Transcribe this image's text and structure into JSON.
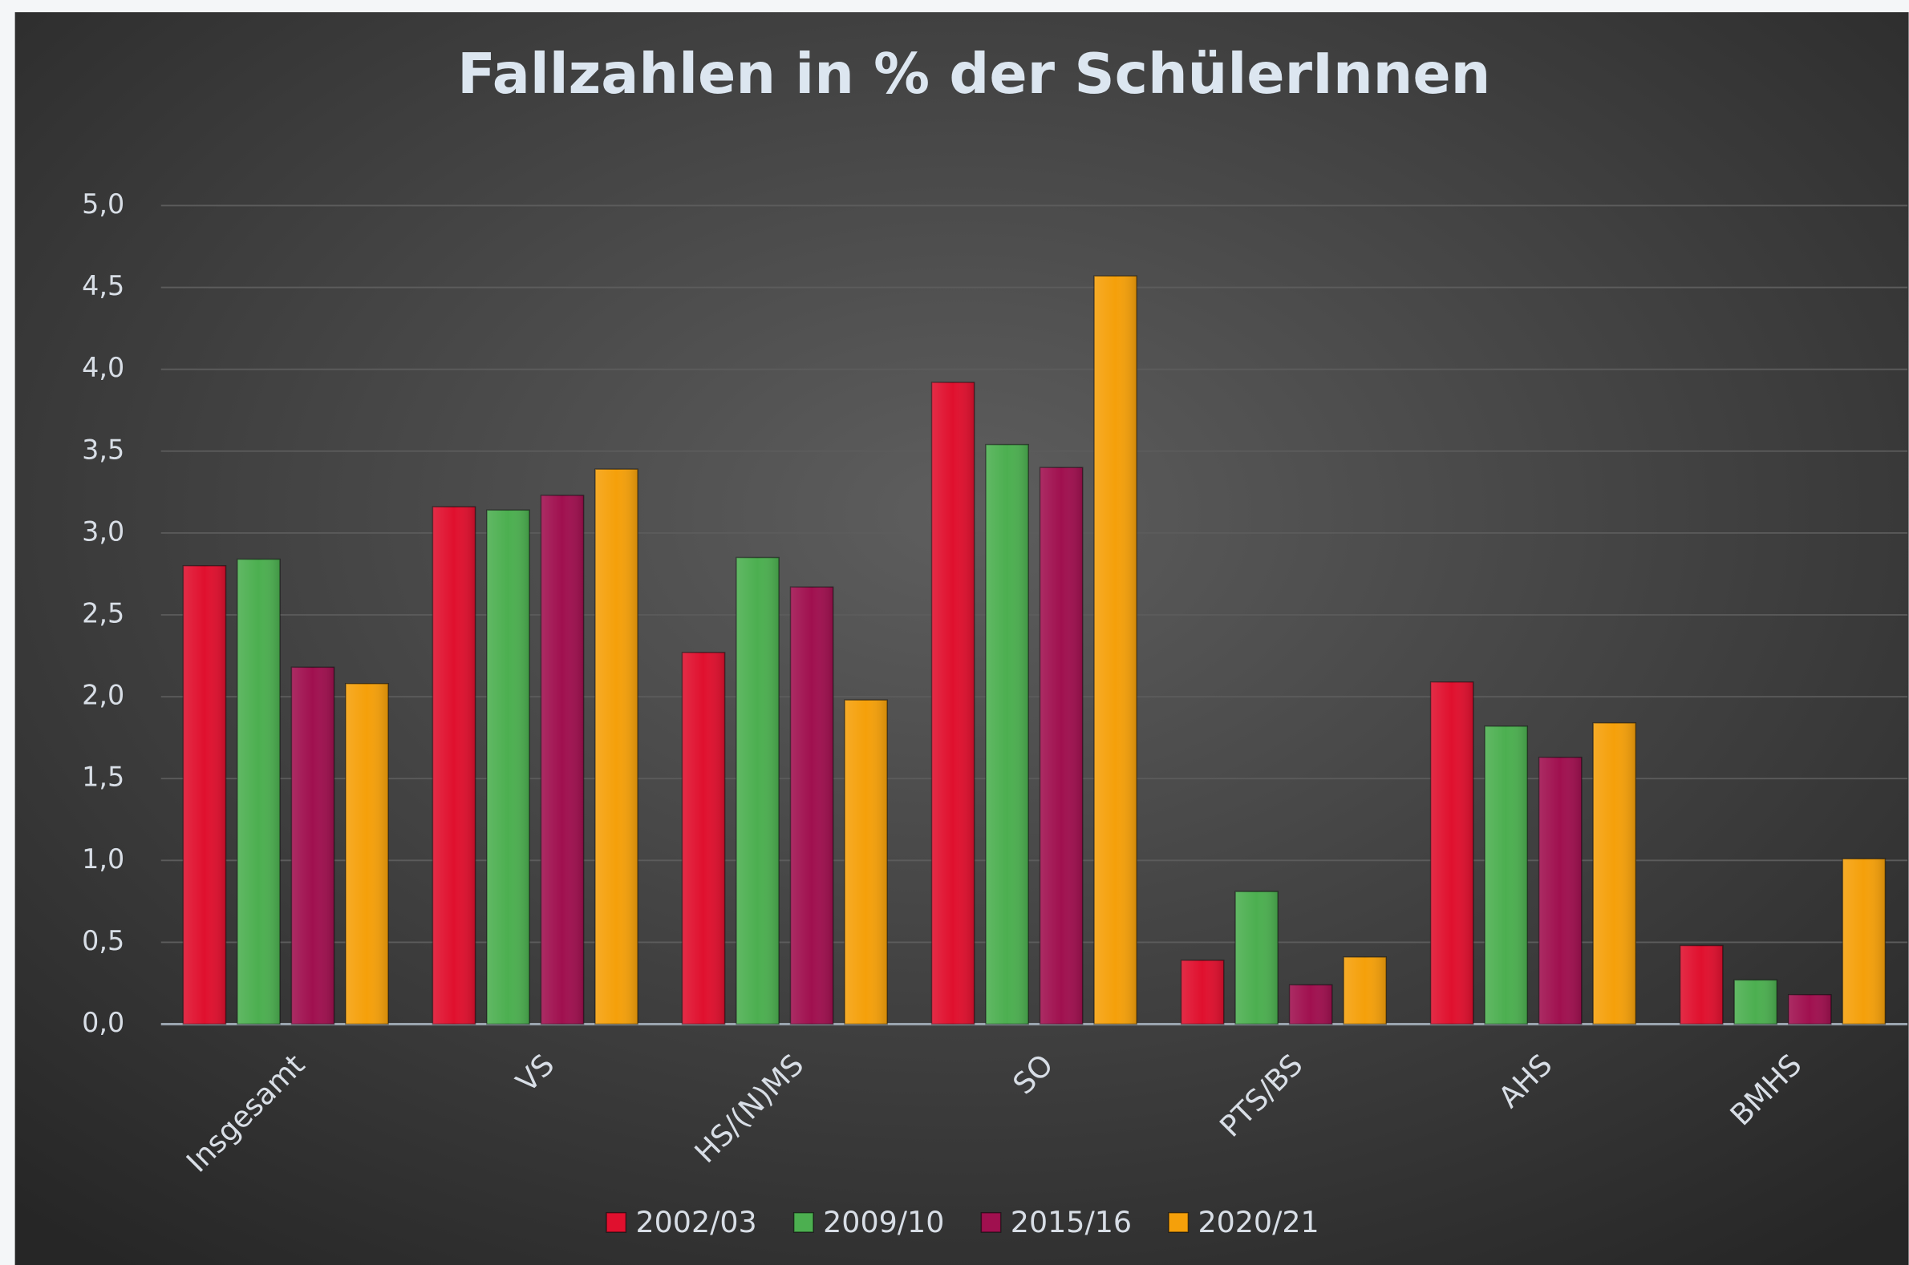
{
  "chart_data": {
    "type": "bar",
    "title": "Fallzahlen in % der SchülerInnen",
    "categories": [
      "Insgesamt",
      "VS",
      "HS/(N)MS",
      "SO",
      "PTS/BS",
      "AHS",
      "BMHS"
    ],
    "series": [
      {
        "name": "2002/03",
        "color": "#e0102e",
        "values": [
          2.8,
          3.16,
          2.27,
          3.92,
          0.39,
          2.09,
          0.48
        ]
      },
      {
        "name": "2009/10",
        "color": "#4caf50",
        "values": [
          2.84,
          3.14,
          2.85,
          3.54,
          0.81,
          1.82,
          0.27
        ]
      },
      {
        "name": "2015/16",
        "color": "#a0104f",
        "values": [
          2.18,
          3.23,
          2.67,
          3.4,
          0.24,
          1.63,
          0.18
        ]
      },
      {
        "name": "2020/21",
        "color": "#f5a00a",
        "values": [
          2.08,
          3.39,
          1.98,
          4.57,
          0.41,
          1.84,
          1.01
        ]
      }
    ],
    "ylim": [
      0,
      5
    ],
    "yticks": [
      {
        "value": 0,
        "label": "0,0"
      },
      {
        "value": 0.5,
        "label": "0,5"
      },
      {
        "value": 1,
        "label": "1,0"
      },
      {
        "value": 1.5,
        "label": "1,5"
      },
      {
        "value": 2,
        "label": "2,0"
      },
      {
        "value": 2.5,
        "label": "2,5"
      },
      {
        "value": 3,
        "label": "3,0"
      },
      {
        "value": 3.5,
        "label": "3,5"
      },
      {
        "value": 4,
        "label": "4,0"
      },
      {
        "value": 4.5,
        "label": "4,5"
      },
      {
        "value": 5,
        "label": "5,0"
      }
    ],
    "grid": true,
    "legend": "bottom"
  }
}
